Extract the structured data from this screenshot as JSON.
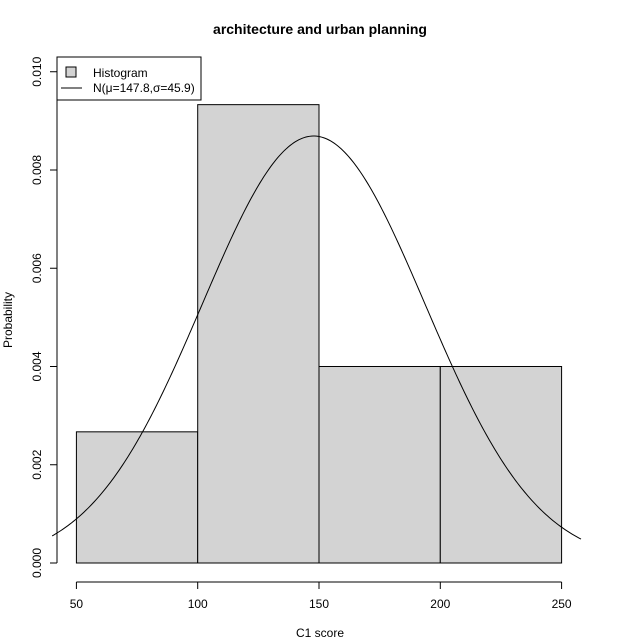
{
  "chart_data": {
    "type": "bar",
    "subtype": "histogram with normal curve",
    "title": "architecture and urban planning",
    "xlabel": "C1 score",
    "ylabel": "Probability",
    "bins": [
      {
        "start": 50,
        "end": 100,
        "value": 0.00267
      },
      {
        "start": 100,
        "end": 150,
        "value": 0.00933
      },
      {
        "start": 150,
        "end": 200,
        "value": 0.004
      },
      {
        "start": 200,
        "end": 250,
        "value": 0.004
      }
    ],
    "curve": {
      "mu": 147.8,
      "sigma": 45.9,
      "x_range": [
        40,
        258
      ]
    },
    "xlim": [
      42,
      258
    ],
    "ylim": [
      0,
      0.0103
    ],
    "x_ticks": [
      50,
      100,
      150,
      200,
      250
    ],
    "x_tick_labels": [
      "50",
      "100",
      "150",
      "200",
      "250"
    ],
    "y_ticks": [
      0,
      0.002,
      0.004,
      0.006,
      0.008,
      0.01
    ],
    "y_tick_labels": [
      "0.000",
      "0.002",
      "0.004",
      "0.006",
      "0.008",
      "0.010"
    ],
    "grid": false,
    "legend": {
      "position": "top-left",
      "entries": [
        {
          "label": "Histogram",
          "kind": "box"
        },
        {
          "label": "N(μ=147.8,σ=45.9)",
          "kind": "line"
        }
      ]
    },
    "colors": {
      "bar_fill": "#d3d3d3",
      "bar_stroke": "#000000",
      "curve": "#000000"
    }
  }
}
